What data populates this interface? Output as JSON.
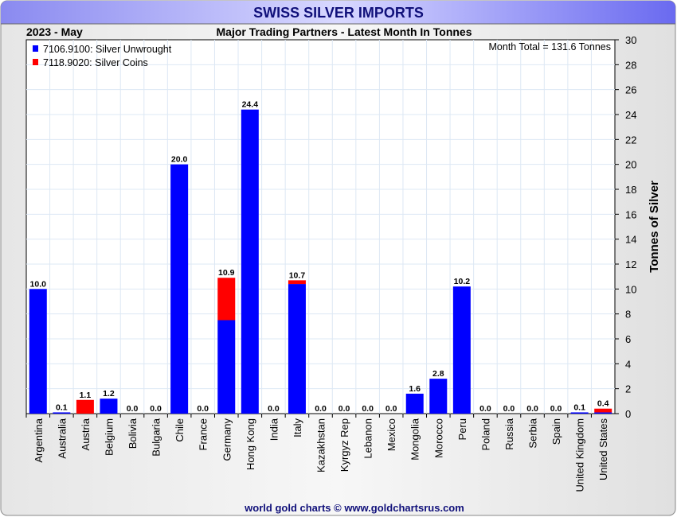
{
  "chart_data": {
    "type": "bar",
    "stacked": true,
    "title": "SWISS SILVER IMPORTS",
    "subtitle": "Major Trading Partners - Latest Month In Tonnes",
    "period": "2023 - May",
    "total_note": "Month Total = 131.6 Tonnes",
    "ylabel": "Tonnes of Silver",
    "ylim": [
      0,
      30
    ],
    "yticks": [
      0,
      2,
      4,
      6,
      8,
      10,
      12,
      14,
      16,
      18,
      20,
      22,
      24,
      26,
      28,
      30
    ],
    "grid": true,
    "legend_position": "top-left",
    "categories": [
      "Argentina",
      "Australia",
      "Austria",
      "Belgium",
      "Bolivia",
      "Bulgaria",
      "Chile",
      "France",
      "Germany",
      "Hong Kong",
      "India",
      "Italy",
      "Kazakhstan",
      "Kyrgyz Rep",
      "Lebanon",
      "Mexico",
      "Mongolia",
      "Morocco",
      "Peru",
      "Poland",
      "Russia",
      "Serbia",
      "Spain",
      "United Kingdom",
      "United States"
    ],
    "series": [
      {
        "name": "7106.9100: Silver Unwrought",
        "color": "#0000ff",
        "values": [
          10.0,
          0.1,
          0,
          1.2,
          0,
          0,
          20.0,
          0,
          7.5,
          24.4,
          0,
          10.4,
          0,
          0,
          0,
          0,
          1.6,
          2.8,
          10.2,
          0,
          0,
          0,
          0,
          0.1,
          0.1
        ]
      },
      {
        "name": "7118.9020: Silver Coins",
        "color": "#ff0000",
        "values": [
          0,
          0,
          1.1,
          0,
          0,
          0,
          0,
          0,
          3.4,
          0,
          0,
          0.3,
          0,
          0,
          0,
          0,
          0,
          0,
          0,
          0,
          0,
          0,
          0,
          0,
          0.3
        ]
      }
    ],
    "data_labels": [
      "10.0",
      "0.1",
      "1.1",
      "1.2",
      "0.0",
      "0.0",
      "20.0",
      "0.0",
      "10.9",
      "24.4",
      "0.0",
      "10.7",
      "0.0",
      "0.0",
      "0.0",
      "0.0",
      "1.6",
      "2.8",
      "10.2",
      "0.0",
      "0.0",
      "0.0",
      "0.0",
      "0.1",
      "0.4"
    ]
  },
  "footer": "world gold charts © www.goldchartsrus.com"
}
